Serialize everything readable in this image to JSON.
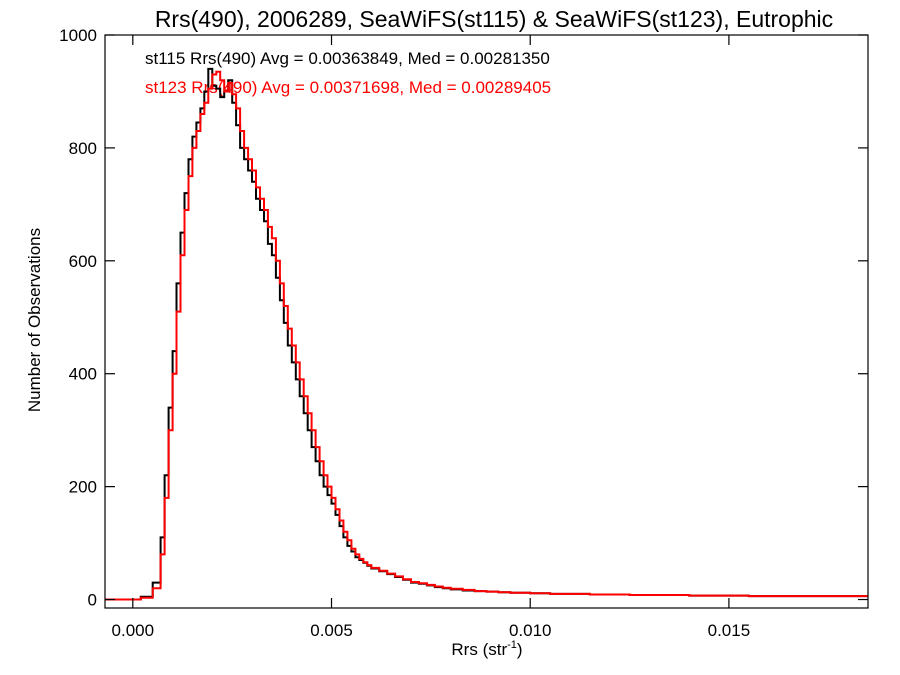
{
  "chart_data": {
    "type": "line",
    "title": "Rrs(490), 2006289, SeaWiFS(st115) & SeaWiFS(st123), Eutrophic",
    "xlabel": "Rrs (str",
    "xlabel_sup": "-1",
    "xlabel_suffix": ")",
    "ylabel": "Number of Observations",
    "xlim": [
      -0.0007,
      0.0185
    ],
    "ylim": [
      -15,
      1000
    ],
    "grid": false,
    "legend": "none",
    "x_ticks": [
      {
        "value": 0.0,
        "label": "0.000"
      },
      {
        "value": 0.005,
        "label": "0.005"
      },
      {
        "value": 0.01,
        "label": "0.010"
      },
      {
        "value": 0.015,
        "label": "0.015"
      }
    ],
    "y_ticks": [
      {
        "value": 0,
        "label": "0"
      },
      {
        "value": 200,
        "label": "200"
      },
      {
        "value": 400,
        "label": "400"
      },
      {
        "value": 600,
        "label": "600"
      },
      {
        "value": 800,
        "label": "800"
      },
      {
        "value": 1000,
        "label": "1000"
      }
    ],
    "annotations": [
      {
        "text": "st115 Rrs(490) Avg = 0.00363849, Med = 0.00281350",
        "color": "#000000"
      },
      {
        "text": "st123 Rrs(490) Avg = 0.00371698, Med = 0.00289405",
        "color": "#ff0000"
      }
    ],
    "series": [
      {
        "color": "#000000",
        "x": [
          -0.0007,
          0.0002,
          0.0005,
          0.0007,
          0.0008,
          0.0009,
          0.001,
          0.0011,
          0.0012,
          0.0013,
          0.0014,
          0.0015,
          0.0016,
          0.0017,
          0.0018,
          0.0019,
          0.002,
          0.0021,
          0.0022,
          0.0023,
          0.0024,
          0.0025,
          0.0026,
          0.0027,
          0.0028,
          0.0029,
          0.003,
          0.0031,
          0.0032,
          0.0033,
          0.0034,
          0.0035,
          0.0036,
          0.0037,
          0.0038,
          0.0039,
          0.004,
          0.0041,
          0.0042,
          0.0043,
          0.0044,
          0.0045,
          0.0046,
          0.0047,
          0.0048,
          0.0049,
          0.005,
          0.0051,
          0.0052,
          0.0053,
          0.0054,
          0.0055,
          0.0056,
          0.0057,
          0.0058,
          0.0059,
          0.006,
          0.0062,
          0.0064,
          0.0066,
          0.0068,
          0.007,
          0.0072,
          0.0074,
          0.0076,
          0.0078,
          0.008,
          0.0083,
          0.0086,
          0.0089,
          0.0092,
          0.0095,
          0.01,
          0.0105,
          0.011,
          0.0115,
          0.012,
          0.0125,
          0.013,
          0.0135,
          0.014,
          0.0145,
          0.015,
          0.0155,
          0.016,
          0.0165,
          0.017,
          0.0175,
          0.018,
          0.0185
        ],
        "y": [
          0,
          5,
          30,
          110,
          220,
          340,
          440,
          560,
          650,
          720,
          780,
          820,
          845,
          870,
          900,
          940,
          910,
          905,
          890,
          900,
          920,
          880,
          840,
          800,
          780,
          760,
          740,
          710,
          690,
          670,
          630,
          610,
          570,
          530,
          490,
          450,
          420,
          390,
          360,
          330,
          300,
          270,
          245,
          220,
          200,
          185,
          170,
          150,
          130,
          110,
          95,
          85,
          75,
          70,
          65,
          60,
          55,
          50,
          45,
          40,
          35,
          30,
          28,
          25,
          22,
          20,
          18,
          16,
          15,
          14,
          13,
          12,
          11,
          10,
          10,
          9,
          9,
          8,
          8,
          8,
          7,
          7,
          7,
          6,
          6,
          6,
          6,
          6,
          6,
          6
        ]
      },
      {
        "color": "#ff0000",
        "x": [
          -0.0007,
          0.0002,
          0.0005,
          0.0007,
          0.0008,
          0.0009,
          0.001,
          0.0011,
          0.0012,
          0.0013,
          0.0014,
          0.0015,
          0.0016,
          0.0017,
          0.0018,
          0.0019,
          0.002,
          0.0021,
          0.0022,
          0.0023,
          0.0024,
          0.0025,
          0.0026,
          0.0027,
          0.0028,
          0.0029,
          0.003,
          0.0031,
          0.0032,
          0.0033,
          0.0034,
          0.0035,
          0.0036,
          0.0037,
          0.0038,
          0.0039,
          0.004,
          0.0041,
          0.0042,
          0.0043,
          0.0044,
          0.0045,
          0.0046,
          0.0047,
          0.0048,
          0.0049,
          0.005,
          0.0051,
          0.0052,
          0.0053,
          0.0054,
          0.0055,
          0.0056,
          0.0057,
          0.0058,
          0.0059,
          0.006,
          0.0062,
          0.0064,
          0.0066,
          0.0068,
          0.007,
          0.0072,
          0.0074,
          0.0076,
          0.0078,
          0.008,
          0.0083,
          0.0086,
          0.0089,
          0.0092,
          0.0095,
          0.01,
          0.0105,
          0.011,
          0.0115,
          0.012,
          0.0125,
          0.013,
          0.0135,
          0.014,
          0.0145,
          0.015,
          0.0155,
          0.016,
          0.0165,
          0.017,
          0.0175,
          0.018,
          0.0185
        ],
        "y": [
          0,
          3,
          20,
          80,
          180,
          300,
          400,
          510,
          610,
          690,
          750,
          800,
          830,
          860,
          880,
          905,
          930,
          935,
          920,
          900,
          915,
          895,
          870,
          830,
          800,
          780,
          760,
          730,
          710,
          690,
          660,
          640,
          600,
          560,
          520,
          480,
          450,
          420,
          390,
          360,
          330,
          300,
          270,
          245,
          220,
          200,
          180,
          160,
          140,
          120,
          105,
          90,
          80,
          72,
          66,
          61,
          56,
          51,
          46,
          41,
          36,
          31,
          29,
          26,
          23,
          21,
          19,
          17,
          15,
          14,
          13,
          12,
          11,
          10,
          10,
          9,
          9,
          8,
          8,
          8,
          7,
          7,
          7,
          6,
          6,
          6,
          6,
          6,
          6,
          6
        ]
      }
    ]
  }
}
